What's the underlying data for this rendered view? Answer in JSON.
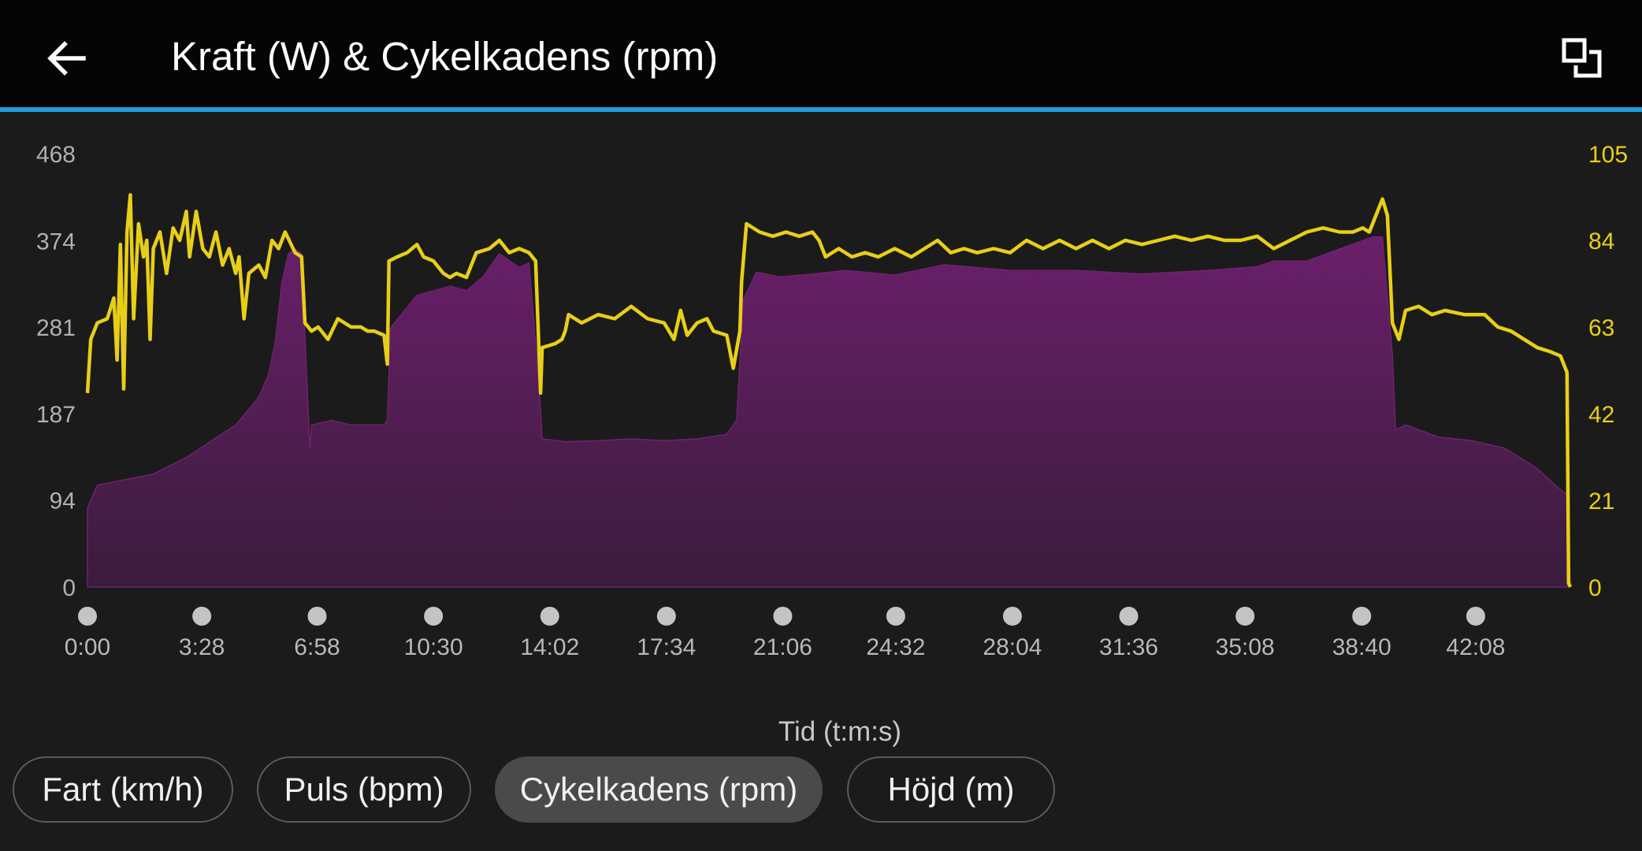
{
  "header": {
    "title": "Kraft (W) & Cykelkadens (rpm)",
    "back_icon": "arrow-left-icon",
    "expand_icon": "expand-overlap-icon",
    "accent_color": "#1e9de0"
  },
  "chart_data": {
    "type": "area+line",
    "title": "Kraft (W) & Cykelkadens (rpm)",
    "xlabel": "Tid (t:m:s)",
    "x_ticks": [
      "0:00",
      "3:28",
      "6:58",
      "10:30",
      "14:02",
      "17:34",
      "21:06",
      "24:32",
      "28:04",
      "31:36",
      "35:08",
      "38:40",
      "42:08"
    ],
    "x_tick_minutes": [
      0,
      3.47,
      6.97,
      10.5,
      14.03,
      17.57,
      21.1,
      24.53,
      28.07,
      31.6,
      35.13,
      38.67,
      42.13
    ],
    "x_range_minutes": [
      0,
      45.0
    ],
    "y_left": {
      "label": "Kraft (W)",
      "ticks": [
        "0",
        "94",
        "187",
        "281",
        "374",
        "468"
      ],
      "range": [
        0,
        468
      ],
      "color": "#b0b0b0"
    },
    "y_right": {
      "label": "Cykelkadens (rpm)",
      "ticks": [
        "0",
        "21",
        "42",
        "63",
        "84",
        "105"
      ],
      "range": [
        0,
        105
      ],
      "color": "#e8cf17"
    },
    "series": [
      {
        "name": "Kraft (W)",
        "axis": "left",
        "color": "#5e1f5e",
        "points": [
          [
            0,
            85
          ],
          [
            0.3,
            110
          ],
          [
            1,
            115
          ],
          [
            2,
            122
          ],
          [
            3,
            140
          ],
          [
            4.5,
            175
          ],
          [
            5.2,
            205
          ],
          [
            5.5,
            230
          ],
          [
            5.7,
            265
          ],
          [
            5.9,
            330
          ],
          [
            6.1,
            360
          ],
          [
            6.3,
            365
          ],
          [
            6.5,
            360
          ],
          [
            6.6,
            270
          ],
          [
            6.75,
            150
          ],
          [
            6.8,
            175
          ],
          [
            7.4,
            180
          ],
          [
            8,
            175
          ],
          [
            9,
            175
          ],
          [
            9.1,
            180
          ],
          [
            9.2,
            280
          ],
          [
            10,
            315
          ],
          [
            11,
            325
          ],
          [
            11.5,
            320
          ],
          [
            12,
            335
          ],
          [
            12.5,
            360
          ],
          [
            13.1,
            345
          ],
          [
            13.4,
            350
          ],
          [
            13.7,
            220
          ],
          [
            13.8,
            160
          ],
          [
            14.5,
            157
          ],
          [
            15.5,
            158
          ],
          [
            16.5,
            160
          ],
          [
            17.5,
            158
          ],
          [
            18.5,
            160
          ],
          [
            19.4,
            165
          ],
          [
            19.7,
            180
          ],
          [
            19.9,
            310
          ],
          [
            20.3,
            340
          ],
          [
            21,
            335
          ],
          [
            22,
            338
          ],
          [
            23,
            342
          ],
          [
            24.5,
            337
          ],
          [
            26,
            348
          ],
          [
            28,
            342
          ],
          [
            30,
            342
          ],
          [
            32,
            338
          ],
          [
            34,
            342
          ],
          [
            35.5,
            346
          ],
          [
            36,
            352
          ],
          [
            37,
            352
          ],
          [
            38,
            365
          ],
          [
            39,
            378
          ],
          [
            39.3,
            378
          ],
          [
            39.6,
            250
          ],
          [
            39.7,
            170
          ],
          [
            40,
            175
          ],
          [
            41,
            162
          ],
          [
            42,
            158
          ],
          [
            43,
            150
          ],
          [
            44,
            128
          ],
          [
            44.6,
            108
          ],
          [
            44.9,
            100
          ]
        ]
      },
      {
        "name": "Cykelkadens (rpm)",
        "axis": "right",
        "color": "#e8cf17",
        "points": [
          [
            0,
            47
          ],
          [
            0.1,
            60
          ],
          [
            0.3,
            64
          ],
          [
            0.6,
            65
          ],
          [
            0.8,
            70
          ],
          [
            0.9,
            55
          ],
          [
            1,
            83
          ],
          [
            1.1,
            48
          ],
          [
            1.2,
            86
          ],
          [
            1.3,
            95
          ],
          [
            1.4,
            65
          ],
          [
            1.55,
            88
          ],
          [
            1.7,
            80
          ],
          [
            1.8,
            84
          ],
          [
            1.9,
            60
          ],
          [
            2,
            82
          ],
          [
            2.2,
            86
          ],
          [
            2.4,
            76
          ],
          [
            2.6,
            87
          ],
          [
            2.8,
            84
          ],
          [
            3,
            91
          ],
          [
            3.1,
            80
          ],
          [
            3.3,
            91
          ],
          [
            3.5,
            82
          ],
          [
            3.7,
            80
          ],
          [
            3.9,
            86
          ],
          [
            4.1,
            78
          ],
          [
            4.3,
            82
          ],
          [
            4.4,
            79
          ],
          [
            4.5,
            76
          ],
          [
            4.6,
            80
          ],
          [
            4.75,
            65
          ],
          [
            4.9,
            76
          ],
          [
            5.2,
            78
          ],
          [
            5.4,
            75
          ],
          [
            5.6,
            84
          ],
          [
            5.8,
            82
          ],
          [
            6,
            86
          ],
          [
            6.3,
            81
          ],
          [
            6.5,
            80
          ],
          [
            6.6,
            64
          ],
          [
            6.8,
            62
          ],
          [
            7,
            63
          ],
          [
            7.3,
            60
          ],
          [
            7.6,
            65
          ],
          [
            8,
            63
          ],
          [
            8.3,
            63
          ],
          [
            8.5,
            62
          ],
          [
            8.7,
            62
          ],
          [
            9,
            61
          ],
          [
            9.1,
            54
          ],
          [
            9.15,
            79
          ],
          [
            9.4,
            80
          ],
          [
            9.7,
            81
          ],
          [
            10,
            83
          ],
          [
            10.2,
            80
          ],
          [
            10.5,
            79
          ],
          [
            10.8,
            76
          ],
          [
            11,
            75
          ],
          [
            11.2,
            76
          ],
          [
            11.5,
            75
          ],
          [
            11.8,
            81
          ],
          [
            12.2,
            82
          ],
          [
            12.5,
            84
          ],
          [
            12.8,
            81
          ],
          [
            13.1,
            82
          ],
          [
            13.4,
            81
          ],
          [
            13.6,
            79
          ],
          [
            13.75,
            47
          ],
          [
            13.8,
            58
          ],
          [
            14.2,
            59
          ],
          [
            14.4,
            60
          ],
          [
            14.5,
            62
          ],
          [
            14.6,
            66
          ],
          [
            15,
            64
          ],
          [
            15.5,
            66
          ],
          [
            16,
            65
          ],
          [
            16.5,
            68
          ],
          [
            17,
            65
          ],
          [
            17.5,
            64
          ],
          [
            17.8,
            60
          ],
          [
            18,
            67
          ],
          [
            18.2,
            61
          ],
          [
            18.5,
            64
          ],
          [
            18.8,
            65
          ],
          [
            19,
            62
          ],
          [
            19.4,
            61
          ],
          [
            19.6,
            53
          ],
          [
            19.8,
            62
          ],
          [
            19.85,
            74
          ],
          [
            20,
            88
          ],
          [
            20.4,
            86
          ],
          [
            20.8,
            85
          ],
          [
            21.2,
            86
          ],
          [
            21.6,
            85
          ],
          [
            22,
            86
          ],
          [
            22.2,
            84
          ],
          [
            22.4,
            80
          ],
          [
            22.8,
            82
          ],
          [
            23.2,
            80
          ],
          [
            23.6,
            81
          ],
          [
            24,
            80
          ],
          [
            24.5,
            82
          ],
          [
            25,
            80
          ],
          [
            25.4,
            82
          ],
          [
            25.8,
            84
          ],
          [
            26.2,
            81
          ],
          [
            26.6,
            82
          ],
          [
            27,
            81
          ],
          [
            27.5,
            82
          ],
          [
            28,
            81
          ],
          [
            28.5,
            84
          ],
          [
            29,
            82
          ],
          [
            29.5,
            84
          ],
          [
            30,
            82
          ],
          [
            30.5,
            84
          ],
          [
            31,
            82
          ],
          [
            31.5,
            84
          ],
          [
            32,
            83
          ],
          [
            32.5,
            84
          ],
          [
            33,
            85
          ],
          [
            33.5,
            84
          ],
          [
            34,
            85
          ],
          [
            34.5,
            84
          ],
          [
            35,
            84
          ],
          [
            35.5,
            85
          ],
          [
            36,
            82
          ],
          [
            36.5,
            84
          ],
          [
            37,
            86
          ],
          [
            37.5,
            87
          ],
          [
            38,
            86
          ],
          [
            38.4,
            86
          ],
          [
            38.7,
            87
          ],
          [
            38.9,
            86
          ],
          [
            39,
            88
          ],
          [
            39.2,
            92
          ],
          [
            39.3,
            94
          ],
          [
            39.45,
            90
          ],
          [
            39.6,
            64
          ],
          [
            39.8,
            60
          ],
          [
            40,
            67
          ],
          [
            40.4,
            68
          ],
          [
            40.8,
            66
          ],
          [
            41.2,
            67
          ],
          [
            41.8,
            66
          ],
          [
            42.4,
            66
          ],
          [
            42.8,
            63
          ],
          [
            43.2,
            62
          ],
          [
            43.6,
            60
          ],
          [
            44,
            58
          ],
          [
            44.4,
            57
          ],
          [
            44.7,
            56
          ],
          [
            44.9,
            52
          ],
          [
            44.95,
            1
          ],
          [
            45,
            0
          ]
        ]
      }
    ],
    "grid": false,
    "legend": "none"
  },
  "chips": [
    {
      "label": "Fart (km/h)",
      "selected": false
    },
    {
      "label": "Puls (bpm)",
      "selected": false
    },
    {
      "label": "Cykelkadens (rpm)",
      "selected": true
    },
    {
      "label": "Höjd (m)",
      "selected": false
    }
  ]
}
